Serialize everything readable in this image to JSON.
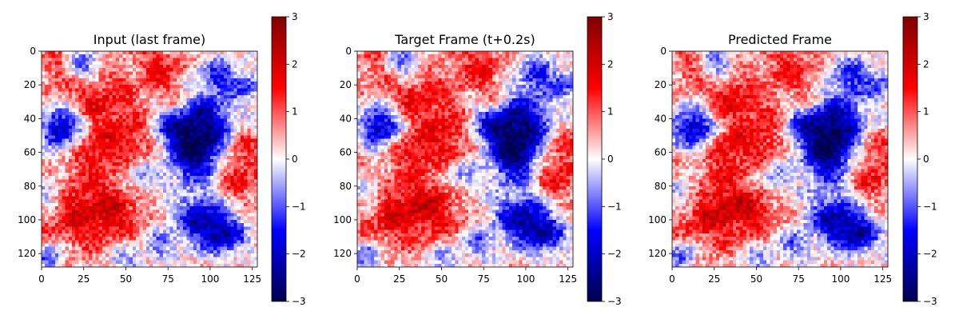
{
  "chart_data": [
    {
      "type": "heatmap",
      "title": "Input (last frame)",
      "field": "input",
      "x_ticks": [
        0,
        25,
        50,
        75,
        100,
        125
      ],
      "y_ticks": [
        0,
        20,
        40,
        60,
        80,
        100,
        120
      ],
      "xlim": [
        0,
        128
      ],
      "ylim": [
        128,
        0
      ],
      "grid_size": 128,
      "colormap": "seismic",
      "colorbar_range": [
        -3,
        3
      ],
      "colorbar_ticks": [
        "−3",
        "−2",
        "−1",
        "0",
        "1",
        "2",
        "3"
      ],
      "grid": false
    },
    {
      "type": "heatmap",
      "title": "Target Frame (t+0.2s)",
      "field": "target",
      "x_ticks": [
        0,
        25,
        50,
        75,
        100,
        125
      ],
      "y_ticks": [
        0,
        20,
        40,
        60,
        80,
        100,
        120
      ],
      "xlim": [
        0,
        128
      ],
      "ylim": [
        128,
        0
      ],
      "grid_size": 128,
      "colormap": "seismic",
      "colorbar_range": [
        -3,
        3
      ],
      "colorbar_ticks": [
        "−3",
        "−2",
        "−1",
        "0",
        "1",
        "2",
        "3"
      ],
      "grid": false
    },
    {
      "type": "heatmap",
      "title": "Predicted Frame",
      "field": "predicted",
      "x_ticks": [
        0,
        25,
        50,
        75,
        100,
        125
      ],
      "y_ticks": [
        0,
        20,
        40,
        60,
        80,
        100,
        120
      ],
      "xlim": [
        0,
        128
      ],
      "ylim": [
        128,
        0
      ],
      "grid_size": 128,
      "colormap": "seismic",
      "colorbar_range": [
        -3,
        3
      ],
      "colorbar_ticks": [
        "−3",
        "−2",
        "−1",
        "0",
        "1",
        "2",
        "3"
      ],
      "grid": false
    }
  ]
}
